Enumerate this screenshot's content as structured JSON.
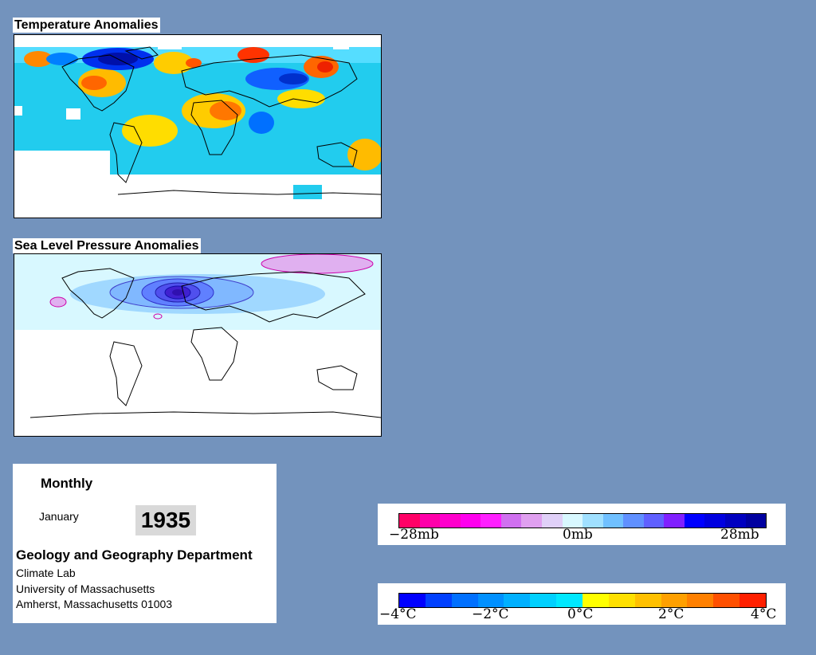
{
  "panels": {
    "temperature": {
      "title": "Temperature Anomalies"
    },
    "pressure": {
      "title": "Sea Level Pressure Anomalies"
    }
  },
  "info": {
    "period": "Monthly",
    "month": "January",
    "year": "1935",
    "department": "Geology and Geography Department",
    "lab": "Climate Lab",
    "university": "University of Massachusetts",
    "address": "Amherst, Massachusetts 01003"
  },
  "legends": {
    "pressure": {
      "labels": [
        "−28mb",
        "0mb",
        "28mb"
      ],
      "colors": [
        "#ff0066",
        "#ff00aa",
        "#ff00cc",
        "#ff00ee",
        "#ff20ff",
        "#d070f0",
        "#e0a0f0",
        "#e0d0f8",
        "#d8f8ff",
        "#a0e0ff",
        "#70c0ff",
        "#6090ff",
        "#6060ff",
        "#8020ff",
        "#0000ff",
        "#0000e0",
        "#0000c0",
        "#0000a0"
      ]
    },
    "temperature": {
      "labels": [
        "−4°C",
        "−2°C",
        "0°C",
        "2°C",
        "4°C"
      ],
      "colors": [
        "#0000ff",
        "#0040ff",
        "#0070ff",
        "#0090ff",
        "#00b0ff",
        "#00d0ff",
        "#00e8ff",
        "#ffff00",
        "#ffe000",
        "#ffc000",
        "#ffa000",
        "#ff8000",
        "#ff5000",
        "#ff2000"
      ]
    }
  }
}
